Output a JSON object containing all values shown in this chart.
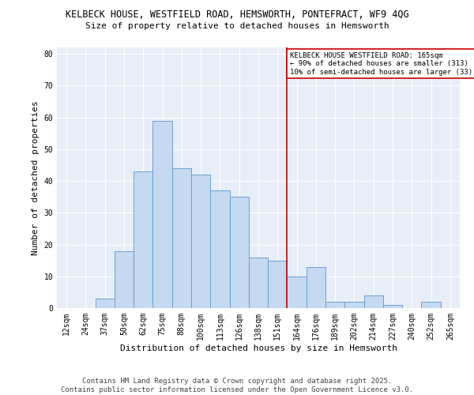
{
  "title_line1": "KELBECK HOUSE, WESTFIELD ROAD, HEMSWORTH, PONTEFRACT, WF9 4QG",
  "title_line2": "Size of property relative to detached houses in Hemsworth",
  "xlabel": "Distribution of detached houses by size in Hemsworth",
  "ylabel": "Number of detached properties",
  "categories": [
    "12sqm",
    "24sqm",
    "37sqm",
    "50sqm",
    "62sqm",
    "75sqm",
    "88sqm",
    "100sqm",
    "113sqm",
    "126sqm",
    "138sqm",
    "151sqm",
    "164sqm",
    "176sqm",
    "189sqm",
    "202sqm",
    "214sqm",
    "227sqm",
    "240sqm",
    "252sqm",
    "265sqm"
  ],
  "values": [
    0,
    0,
    3,
    18,
    43,
    59,
    44,
    42,
    37,
    35,
    16,
    15,
    10,
    13,
    2,
    2,
    4,
    1,
    0,
    2,
    0
  ],
  "bar_color": "#c5d9f1",
  "bar_edge_color": "#6b9fce",
  "vline_x_index": 12,
  "vline_color": "#cc0000",
  "annotation_text": "KELBECK HOUSE WESTFIELD ROAD: 165sqm\n← 90% of detached houses are smaller (313)\n10% of semi-detached houses are larger (33) →",
  "annotation_box_color": "white",
  "annotation_box_edge": "#cc0000",
  "ylim": [
    0,
    82
  ],
  "yticks": [
    0,
    10,
    20,
    30,
    40,
    50,
    60,
    70,
    80
  ],
  "background_color": "#e8eef7",
  "footer_line1": "Contains HM Land Registry data © Crown copyright and database right 2025.",
  "footer_line2": "Contains public sector information licensed under the Open Government Licence v3.0.",
  "title_fontsize": 8.5,
  "subtitle_fontsize": 8.0,
  "axis_label_fontsize": 8.0,
  "tick_fontsize": 7.0,
  "annotation_fontsize": 6.5,
  "footer_fontsize": 6.5
}
